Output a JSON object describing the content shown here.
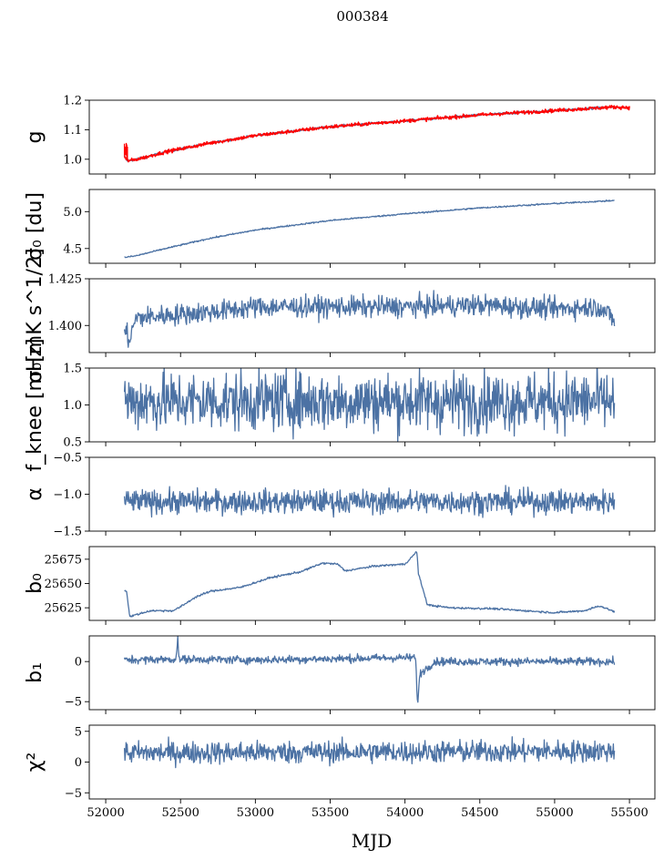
{
  "figure": {
    "title": "000384",
    "xlabel": "MJD",
    "series_color": "#4c72a4",
    "gain_overlay_color": "#ff0000"
  },
  "chart_data": [
    {
      "type": "line",
      "ylabel": "g",
      "ylim": [
        0.95,
        1.2
      ],
      "yticks": [
        "1.0",
        "1.1",
        "1.2"
      ],
      "ytick_values": [
        1.0,
        1.1,
        1.2
      ],
      "xlim": [
        51890,
        55670
      ],
      "series": [
        {
          "x": [
            52125,
            52140,
            52180,
            52250,
            52400,
            52700,
            53000,
            53500,
            54000,
            54500,
            55000,
            55400
          ],
          "values": [
            1.01,
            0.995,
            0.997,
            1.005,
            1.025,
            1.055,
            1.08,
            1.11,
            1.13,
            1.15,
            1.165,
            1.177
          ],
          "noise": 0.002
        },
        {
          "x": [
            52125,
            52140,
            52180,
            52250,
            52400,
            52700,
            53000,
            53500,
            54000,
            54500,
            55000,
            55400,
            55500
          ],
          "values": [
            1.01,
            0.995,
            0.997,
            1.005,
            1.025,
            1.055,
            1.08,
            1.11,
            1.13,
            1.15,
            1.165,
            1.177,
            1.175
          ],
          "noise": 0.003,
          "spike_start": [
            1.06,
            1.0
          ],
          "color": "#ff0000"
        }
      ]
    },
    {
      "type": "line",
      "ylabel": "σ₀ [du]",
      "ylim": [
        4.3,
        5.3
      ],
      "yticks": [
        "4.5",
        "5.0"
      ],
      "ytick_values": [
        4.5,
        5.0
      ],
      "xlim": [
        51890,
        55670
      ],
      "series": [
        {
          "x": [
            52125,
            52200,
            52400,
            52700,
            53000,
            53500,
            54000,
            54500,
            55000,
            55400
          ],
          "values": [
            4.38,
            4.4,
            4.5,
            4.64,
            4.75,
            4.88,
            4.97,
            5.05,
            5.11,
            5.15
          ],
          "noise": 0.005
        }
      ]
    },
    {
      "type": "line",
      "ylabel": "σ₀[mK s^1/2]",
      "ylim": [
        1.3855,
        1.425
      ],
      "yticks": [
        "1.400",
        "1.425"
      ],
      "ytick_values": [
        1.4,
        1.425
      ],
      "xlim": [
        51890,
        55670
      ],
      "series": [
        {
          "x": [
            52125,
            52160,
            52200,
            52500,
            52800,
            53000,
            53500,
            54000,
            54500,
            55000,
            55300,
            55400
          ],
          "values": [
            1.398,
            1.392,
            1.404,
            1.406,
            1.408,
            1.41,
            1.41,
            1.41,
            1.411,
            1.409,
            1.41,
            1.403
          ],
          "noise": 0.0028
        }
      ]
    },
    {
      "type": "line",
      "ylabel": "f_knee [mHz]",
      "ylim": [
        0.5,
        1.5
      ],
      "yticks": [
        "0.5",
        "1.0",
        "1.5"
      ],
      "ytick_values": [
        0.5,
        1.0,
        1.5
      ],
      "xlim": [
        51890,
        55670
      ],
      "series": [
        {
          "x": [
            52125,
            55400
          ],
          "values": [
            1.05,
            1.05
          ],
          "noise": 0.2
        }
      ]
    },
    {
      "type": "line",
      "ylabel": "α",
      "ylim": [
        -1.5,
        -0.5
      ],
      "yticks": [
        "−1.5",
        "−1.0",
        "−0.5"
      ],
      "ytick_values": [
        -1.5,
        -1.0,
        -0.5
      ],
      "xlim": [
        51890,
        55670
      ],
      "series": [
        {
          "x": [
            52125,
            55400
          ],
          "values": [
            -1.1,
            -1.1
          ],
          "noise": 0.08
        }
      ]
    },
    {
      "type": "line",
      "ylabel": "b₀",
      "ylim": [
        25612,
        25688
      ],
      "yticks": [
        "25625",
        "25650",
        "25675"
      ],
      "ytick_values": [
        25625,
        25650,
        25675
      ],
      "xlim": [
        51890,
        55670
      ],
      "series": [
        {
          "x": [
            52125,
            52140,
            52160,
            52300,
            52450,
            52500,
            52600,
            52700,
            52900,
            53100,
            53300,
            53450,
            53550,
            53600,
            53800,
            54000,
            54080,
            54090,
            54150,
            54300,
            54600,
            55000,
            55200,
            55300,
            55400
          ],
          "values": [
            25643,
            25642,
            25616,
            25622,
            25622,
            25626,
            25636,
            25642,
            25646,
            25656,
            25662,
            25671,
            25670,
            25663,
            25668,
            25670,
            25683,
            25660,
            25628,
            25625,
            25624,
            25620,
            25622,
            25627,
            25621
          ],
          "noise": 0.5
        }
      ]
    },
    {
      "type": "line",
      "ylabel": "b₁",
      "ylim": [
        -6,
        3.2
      ],
      "yticks": [
        "−5",
        "0"
      ],
      "ytick_values": [
        -5,
        0
      ],
      "xlim": [
        51890,
        55670
      ],
      "series": [
        {
          "x": [
            52125,
            52470,
            52480,
            52490,
            53000,
            54070,
            54085,
            54100,
            54200,
            55400
          ],
          "values": [
            0.2,
            0.3,
            3.0,
            0.3,
            0.2,
            0.5,
            -5.3,
            -1.5,
            0.0,
            0.0
          ],
          "noise": 0.25
        }
      ]
    },
    {
      "type": "line",
      "ylabel": "χ²",
      "ylim": [
        -6,
        6
      ],
      "yticks": [
        "−5",
        "0",
        "5"
      ],
      "ytick_values": [
        -5,
        0,
        5
      ],
      "xlim": [
        51890,
        55670
      ],
      "xticks": [
        "52000",
        "52500",
        "53000",
        "53500",
        "54000",
        "54500",
        "55000",
        "55500"
      ],
      "xtick_values": [
        52000,
        52500,
        53000,
        53500,
        54000,
        54500,
        55000,
        55500
      ],
      "series": [
        {
          "x": [
            52125,
            55400
          ],
          "values": [
            1.5,
            1.8
          ],
          "noise": 0.9
        }
      ]
    }
  ]
}
